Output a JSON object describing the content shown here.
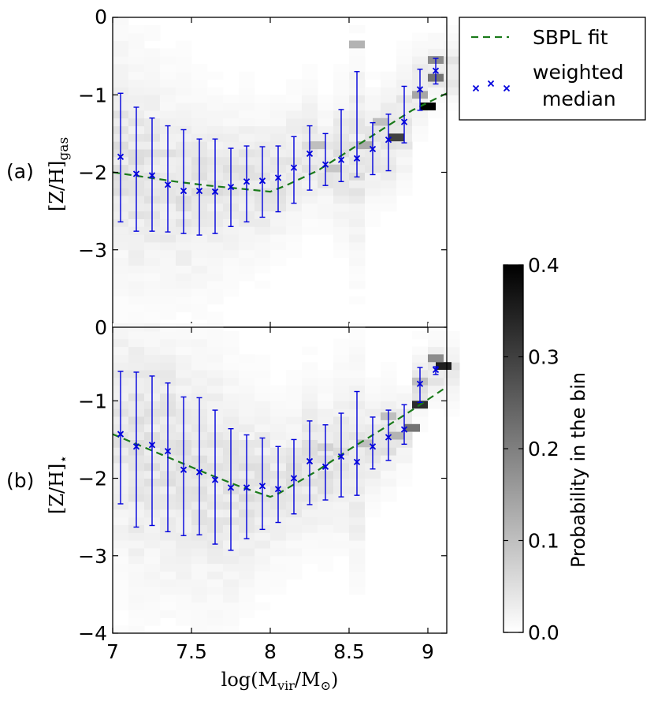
{
  "chart_data": [
    {
      "type": "scatter",
      "panel_label": "(a)",
      "ylabel_main": "[Z/H]",
      "ylabel_sub": "gas",
      "xlim": [
        7.0,
        9.12
      ],
      "ylim": [
        -4.0,
        0.0
      ],
      "x_ticks": [
        7,
        7.5,
        8,
        8.5,
        9
      ],
      "y_ticks": [
        0,
        -1,
        -2,
        -3
      ],
      "y_tick_labels": [
        "0",
        "−1",
        "−2",
        "−3"
      ],
      "median": {
        "x": [
          7.05,
          7.15,
          7.25,
          7.35,
          7.45,
          7.55,
          7.65,
          7.75,
          7.85,
          7.95,
          8.05,
          8.15,
          8.25,
          8.35,
          8.45,
          8.55,
          8.65,
          8.75,
          8.85,
          8.95,
          9.05
        ],
        "y": [
          -1.8,
          -2.02,
          -2.04,
          -2.16,
          -2.24,
          -2.24,
          -2.25,
          -2.19,
          -2.12,
          -2.11,
          -2.07,
          -1.94,
          -1.76,
          -1.9,
          -1.84,
          -1.82,
          -1.7,
          -1.58,
          -1.35,
          -0.93,
          -0.69
        ],
        "err_low": [
          -2.64,
          -2.76,
          -2.76,
          -2.77,
          -2.79,
          -2.81,
          -2.79,
          -2.7,
          -2.64,
          -2.58,
          -2.51,
          -2.4,
          -2.23,
          -2.17,
          -2.12,
          -2.06,
          -2.03,
          -1.98,
          -1.62,
          -1.2,
          -0.86
        ],
        "err_high": [
          -0.98,
          -1.16,
          -1.3,
          -1.4,
          -1.45,
          -1.57,
          -1.57,
          -1.69,
          -1.66,
          -1.67,
          -1.66,
          -1.54,
          -1.4,
          -1.5,
          -1.19,
          -0.7,
          -1.36,
          -1.25,
          -0.89,
          -0.67,
          -0.53
        ]
      },
      "fit": {
        "x": [
          7.0,
          7.2,
          7.4,
          7.6,
          7.8,
          8.0,
          8.1,
          8.3,
          8.5,
          8.7,
          8.9,
          9.12
        ],
        "y": [
          -2.0,
          -2.06,
          -2.12,
          -2.17,
          -2.21,
          -2.25,
          -2.17,
          -1.98,
          -1.72,
          -1.46,
          -1.2,
          -0.98
        ]
      },
      "hist_peaks": [
        {
          "x": 9.0,
          "y": -1.15,
          "p": 0.4
        },
        {
          "x": 8.8,
          "y": -1.55,
          "p": 0.3
        },
        {
          "x": 9.05,
          "y": -0.78,
          "p": 0.22
        },
        {
          "x": 9.05,
          "y": -0.55,
          "p": 0.18
        },
        {
          "x": 8.6,
          "y": -1.65,
          "p": 0.13
        },
        {
          "x": 8.55,
          "y": -0.35,
          "p": 0.12
        },
        {
          "x": 8.95,
          "y": -1.0,
          "p": 0.14
        },
        {
          "x": 8.7,
          "y": -1.35,
          "p": 0.1
        },
        {
          "x": 8.3,
          "y": -1.65,
          "p": 0.1
        },
        {
          "x": 8.4,
          "y": -1.95,
          "p": 0.09
        }
      ]
    },
    {
      "type": "scatter",
      "panel_label": "(b)",
      "ylabel_main": "[Z/H]",
      "ylabel_sub": "⋆",
      "xlim": [
        7.0,
        9.12
      ],
      "ylim": [
        -4.0,
        -0.05
      ],
      "x_ticks": [
        7,
        7.5,
        8,
        8.5,
        9
      ],
      "y_ticks": [
        -1,
        -2,
        -3,
        -4
      ],
      "y_tick_labels": [
        "−1",
        "−2",
        "−3",
        "−4"
      ],
      "median": {
        "x": [
          7.05,
          7.15,
          7.25,
          7.35,
          7.45,
          7.55,
          7.65,
          7.75,
          7.85,
          7.95,
          8.05,
          8.15,
          8.25,
          8.35,
          8.45,
          8.55,
          8.65,
          8.75,
          8.85,
          8.95,
          9.05
        ],
        "y": [
          -1.43,
          -1.59,
          -1.57,
          -1.65,
          -1.89,
          -1.92,
          -2.02,
          -2.12,
          -2.12,
          -2.1,
          -2.14,
          -2.0,
          -1.78,
          -1.85,
          -1.72,
          -1.79,
          -1.59,
          -1.47,
          -1.37,
          -0.78,
          -0.6
        ],
        "err_low": [
          -2.33,
          -2.63,
          -2.61,
          -2.69,
          -2.74,
          -2.73,
          -2.85,
          -2.93,
          -2.78,
          -2.66,
          -2.57,
          -2.46,
          -2.34,
          -2.28,
          -2.24,
          -2.22,
          -1.88,
          -1.77,
          -1.56,
          -1.02,
          -0.66
        ],
        "err_high": [
          -0.62,
          -0.63,
          -0.68,
          -0.77,
          -0.95,
          -0.96,
          -1.12,
          -1.36,
          -1.44,
          -1.48,
          -1.59,
          -1.5,
          -1.26,
          -1.31,
          -1.16,
          -0.88,
          -1.21,
          -1.12,
          -1.05,
          -0.57,
          -0.56
        ]
      },
      "fit": {
        "x": [
          7.0,
          7.2,
          7.4,
          7.6,
          7.8,
          8.0,
          8.05,
          8.3,
          8.5,
          8.7,
          8.9,
          9.12
        ],
        "y": [
          -1.43,
          -1.6,
          -1.77,
          -1.94,
          -2.1,
          -2.24,
          -2.2,
          -1.9,
          -1.63,
          -1.38,
          -1.12,
          -0.82
        ]
      },
      "hist_peaks": [
        {
          "x": 9.1,
          "y": -0.55,
          "p": 0.35
        },
        {
          "x": 8.95,
          "y": -1.05,
          "p": 0.33
        },
        {
          "x": 8.9,
          "y": -1.35,
          "p": 0.22
        },
        {
          "x": 9.05,
          "y": -0.45,
          "p": 0.18
        },
        {
          "x": 8.8,
          "y": -1.45,
          "p": 0.12
        },
        {
          "x": 8.75,
          "y": -1.2,
          "p": 0.1
        },
        {
          "x": 8.6,
          "y": -1.55,
          "p": 0.1
        },
        {
          "x": 8.95,
          "y": -0.75,
          "p": 0.1
        },
        {
          "x": 8.35,
          "y": -1.6,
          "p": 0.07
        }
      ]
    }
  ],
  "xlabel_prefix": "log(M",
  "xlabel_sub1": "vir",
  "xlabel_mid": "/M",
  "xlabel_sub2": "⊙",
  "xlabel_suffix": ")",
  "x_tick_labels": [
    "7",
    "7.5",
    "8",
    "8.5",
    "9"
  ],
  "legend": {
    "fit_label": "SBPL fit",
    "median_label_line1": "weighted",
    "median_label_line2": "median",
    "fit_color": "#1a7a1a",
    "median_color": "#0000dd"
  },
  "colorbar": {
    "label": "Probability in the bin",
    "min": 0.0,
    "max": 0.4,
    "tick_labels": [
      "0.4",
      "0.3",
      "0.2",
      "0.1",
      "0.0"
    ]
  }
}
